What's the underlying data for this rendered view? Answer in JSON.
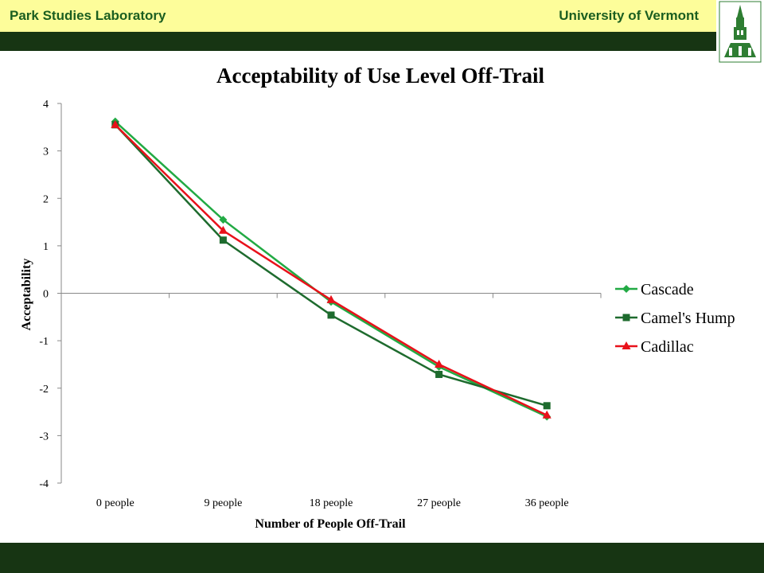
{
  "header": {
    "left_text": "Park Studies Laboratory",
    "right_text": "University of Vermont",
    "logo_icon": "university-tower-icon"
  },
  "colors": {
    "header_bg": "#fdfd9a",
    "header_text": "#1b5e20",
    "band": "#173513"
  },
  "chart_data": {
    "type": "line",
    "title": "Acceptability of Use Level Off-Trail",
    "xlabel": "Number of People Off-Trail",
    "ylabel": "Acceptability",
    "categories": [
      "0 people",
      "9 people",
      "18 people",
      "27 people",
      "36 people"
    ],
    "ylim": [
      -4,
      4
    ],
    "yticks": [
      "4",
      "3",
      "2",
      "1",
      "0",
      "-1",
      "-2",
      "-3",
      "-4"
    ],
    "grid": false,
    "legend_position": "right",
    "series": [
      {
        "name": "Cascade",
        "color": "#22aa44",
        "marker": "diamond",
        "values": [
          3.62,
          1.55,
          -0.18,
          -1.55,
          -2.6
        ]
      },
      {
        "name": "Camel's Hump",
        "color": "#1e6b2e",
        "marker": "square",
        "values": [
          3.55,
          1.12,
          -0.46,
          -1.71,
          -2.37
        ]
      },
      {
        "name": "Cadillac",
        "color": "#e8111a",
        "marker": "triangle",
        "values": [
          3.55,
          1.32,
          -0.14,
          -1.5,
          -2.57
        ]
      }
    ]
  }
}
